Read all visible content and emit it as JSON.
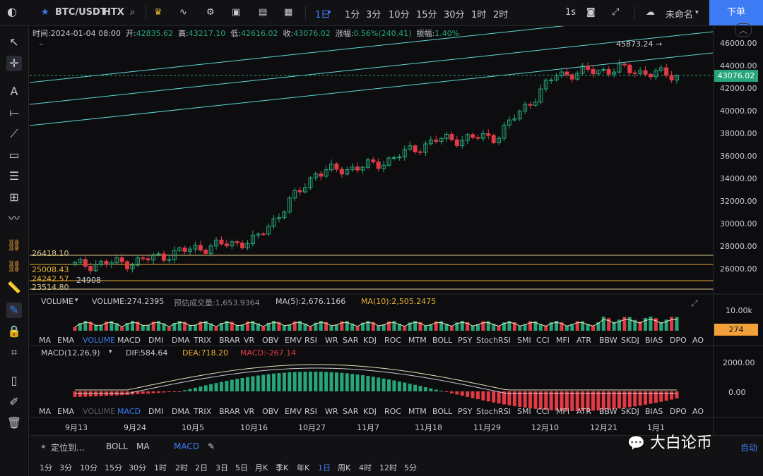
{
  "header": {
    "symbol": "BTC/USDT",
    "exchange": "HTX",
    "interval_selected": "1日",
    "intervals": [
      "1分",
      "3分",
      "10分",
      "15分",
      "30分",
      "1时",
      "2时"
    ],
    "refresh": "1s",
    "layout_name": "未命名",
    "order_button": "下单"
  },
  "ohlc": {
    "time_label": "时间:",
    "time": "2024-01-04 08:00",
    "open_label": "开:",
    "open": "42835.62",
    "high_label": "高:",
    "high": "43217.10",
    "low_label": "低:",
    "low": "42616.02",
    "close_label": "收:",
    "close": "43076.02",
    "change_label": "涨幅:",
    "change": "0.56%(240.41)",
    "amp_label": "振幅:",
    "amp": "1.40%"
  },
  "price_axis": {
    "ticks": [
      "46000.00",
      "44000.00",
      "42000.00",
      "40000.00",
      "38000.00",
      "36000.00",
      "34000.00",
      "32000.00",
      "30000.00",
      "28000.00",
      "26000.00"
    ],
    "last_price": "43076.02",
    "high_marker": "45873.24 →"
  },
  "levels": [
    "26418.10",
    "25008.43",
    "24242.57",
    "23514.80",
    "24908"
  ],
  "volume": {
    "name": "VOLUME",
    "value": "VOLUME:274.2395",
    "est": "预估成交量:1,653.9364",
    "ma5": "MA(5):2,676.1166",
    "ma10": "MA(10):2,505.2475",
    "axis_tick": "10.00k",
    "tag": "274"
  },
  "macd": {
    "name": "MACD(12,26,9)",
    "dif": "DIF:584.64",
    "dea": "DEA:718.20",
    "macd": "MACD:-267.14",
    "axis_ticks": [
      "2000.00",
      "0.00"
    ]
  },
  "indicators": [
    "MA",
    "EMA",
    "VOLUME",
    "MACD",
    "DMI",
    "DMA",
    "TRIX",
    "BRAR",
    "VR",
    "OBV",
    "EMV",
    "RSI",
    "WR",
    "SAR",
    "KDJ",
    "ROC",
    "MTM",
    "BOLL",
    "PSY",
    "StochRSI",
    "SMI",
    "CCI",
    "MFI",
    "ATR",
    "BBW",
    "SKDJ",
    "BIAS",
    "DPO",
    "AO"
  ],
  "dates": [
    "9月13",
    "9月24",
    "10月5",
    "10月16",
    "10月27",
    "11月7",
    "11月18",
    "11月29",
    "12月10",
    "12月21",
    "1月1"
  ],
  "footer": {
    "locate": "定位到...",
    "boll": "BOLL",
    "ma": "MA",
    "macd": "MACD",
    "auto": "自动",
    "periods": [
      "1分",
      "3分",
      "10分",
      "15分",
      "30分",
      "1时",
      "2时",
      "2日",
      "3日",
      "5日",
      "月K",
      "季K",
      "年K",
      "1日",
      "周K",
      "4时",
      "12时",
      "5分"
    ]
  },
  "watermark": "大白论币",
  "colors": {
    "up": "#26a67a",
    "down": "#e23a45",
    "accent": "#3d7cf5",
    "bg": "#0d0d0f"
  },
  "chart_data": {
    "type": "candlestick",
    "title": "BTC/USDT HTX 1日",
    "x": [
      "9月13",
      "9月24",
      "10月5",
      "10月16",
      "10月27",
      "11月7",
      "11月18",
      "11月29",
      "12月10",
      "12月21",
      "1月1"
    ],
    "close": [
      26300,
      26600,
      27800,
      28500,
      34500,
      35200,
      37400,
      37700,
      43200,
      43700,
      43076
    ],
    "ylim": [
      23000,
      47500
    ],
    "levels": [
      26418.1,
      25008.43,
      24242.57,
      23514.8
    ]
  }
}
